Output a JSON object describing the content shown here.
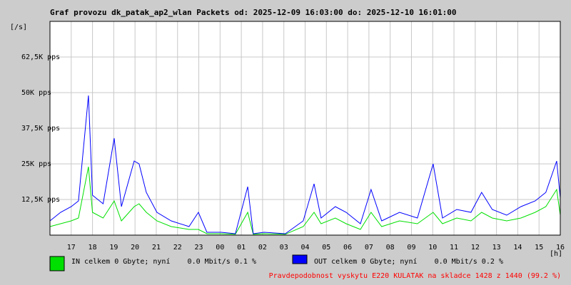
{
  "chart_data": {
    "type": "line",
    "title": "Graf provozu dk_patak_ap2_wlan Packets od: 2025-12-09 16:03:00 do: 2025-12-10 16:01:00",
    "y_unit_label": "[/s]",
    "x_unit_label": "[h]",
    "footer": "Pravdepodobnost vyskytu E220 KULATAK na skladce 1428 z 1440 (99.2 %)",
    "x": [
      0,
      0.5,
      1,
      1.34,
      1.81,
      2.0,
      2.5,
      3.02,
      3.36,
      3.96,
      4.19,
      4.53,
      5.03,
      5.7,
      6.54,
      6.98,
      7.38,
      8.05,
      8.72,
      9.3,
      9.56,
      10.07,
      11.07,
      11.91,
      12.42,
      12.75,
      13.42,
      13.93,
      14.6,
      15.1,
      15.6,
      16.44,
      17.28,
      18.02,
      18.46,
      19.13,
      19.8,
      20.3,
      20.8,
      21.48,
      22.15,
      22.82,
      23.32,
      23.83,
      24.0
    ],
    "series": [
      {
        "name": "IN celkem 0 Gbyte; nyní    0.0 Mbit/s 0.1 %",
        "color": "#00e000",
        "values": [
          3000,
          4000,
          5000,
          6000,
          24000,
          8000,
          6000,
          12000,
          5000,
          10000,
          11000,
          8000,
          5000,
          3000,
          2000,
          2000,
          500,
          500,
          300,
          8000,
          300,
          500,
          300,
          3000,
          8000,
          4000,
          6000,
          4000,
          2000,
          8000,
          3000,
          5000,
          4000,
          8000,
          4000,
          6000,
          5000,
          8000,
          6000,
          5000,
          6000,
          8000,
          10000,
          16000,
          7000
        ]
      },
      {
        "name": "OUT celkem 0 Gbyte; nyní    0.0 Mbit/s 0.2 %",
        "color": "#0000ff",
        "values": [
          5000,
          8000,
          10000,
          12000,
          49000,
          14000,
          11000,
          34000,
          10000,
          26000,
          25000,
          15000,
          8000,
          5000,
          3000,
          8000,
          1000,
          1000,
          500,
          17000,
          500,
          1000,
          500,
          5000,
          18000,
          6000,
          10000,
          8000,
          4000,
          16000,
          5000,
          8000,
          6000,
          25000,
          6000,
          9000,
          8000,
          15000,
          9000,
          7000,
          10000,
          12000,
          15000,
          26000,
          13000
        ]
      }
    ],
    "xlim": [
      0,
      24
    ],
    "xticks": [
      {
        "value": 1,
        "label": "17"
      },
      {
        "value": 2,
        "label": "18"
      },
      {
        "value": 3,
        "label": "19"
      },
      {
        "value": 4,
        "label": "20"
      },
      {
        "value": 5,
        "label": "21"
      },
      {
        "value": 6,
        "label": "22"
      },
      {
        "value": 7,
        "label": "23"
      },
      {
        "value": 8,
        "label": "00"
      },
      {
        "value": 9,
        "label": "01"
      },
      {
        "value": 10,
        "label": "02"
      },
      {
        "value": 11,
        "label": "03"
      },
      {
        "value": 12,
        "label": "04"
      },
      {
        "value": 13,
        "label": "05"
      },
      {
        "value": 14,
        "label": "06"
      },
      {
        "value": 15,
        "label": "07"
      },
      {
        "value": 16,
        "label": "08"
      },
      {
        "value": 17,
        "label": "09"
      },
      {
        "value": 18,
        "label": "10"
      },
      {
        "value": 19,
        "label": "11"
      },
      {
        "value": 20,
        "label": "12"
      },
      {
        "value": 21,
        "label": "13"
      },
      {
        "value": 22,
        "label": "14"
      },
      {
        "value": 23,
        "label": "15"
      },
      {
        "value": 24,
        "label": "16"
      }
    ],
    "ylim": [
      0,
      75000
    ],
    "yticks": [
      {
        "value": 12500,
        "label": "12,5K pps"
      },
      {
        "value": 25000,
        "label": "25K pps"
      },
      {
        "value": 37500,
        "label": "37,5K pps"
      },
      {
        "value": 50000,
        "label": "50K pps"
      },
      {
        "value": 62500,
        "label": "62,5K pps"
      }
    ],
    "grid": true
  }
}
